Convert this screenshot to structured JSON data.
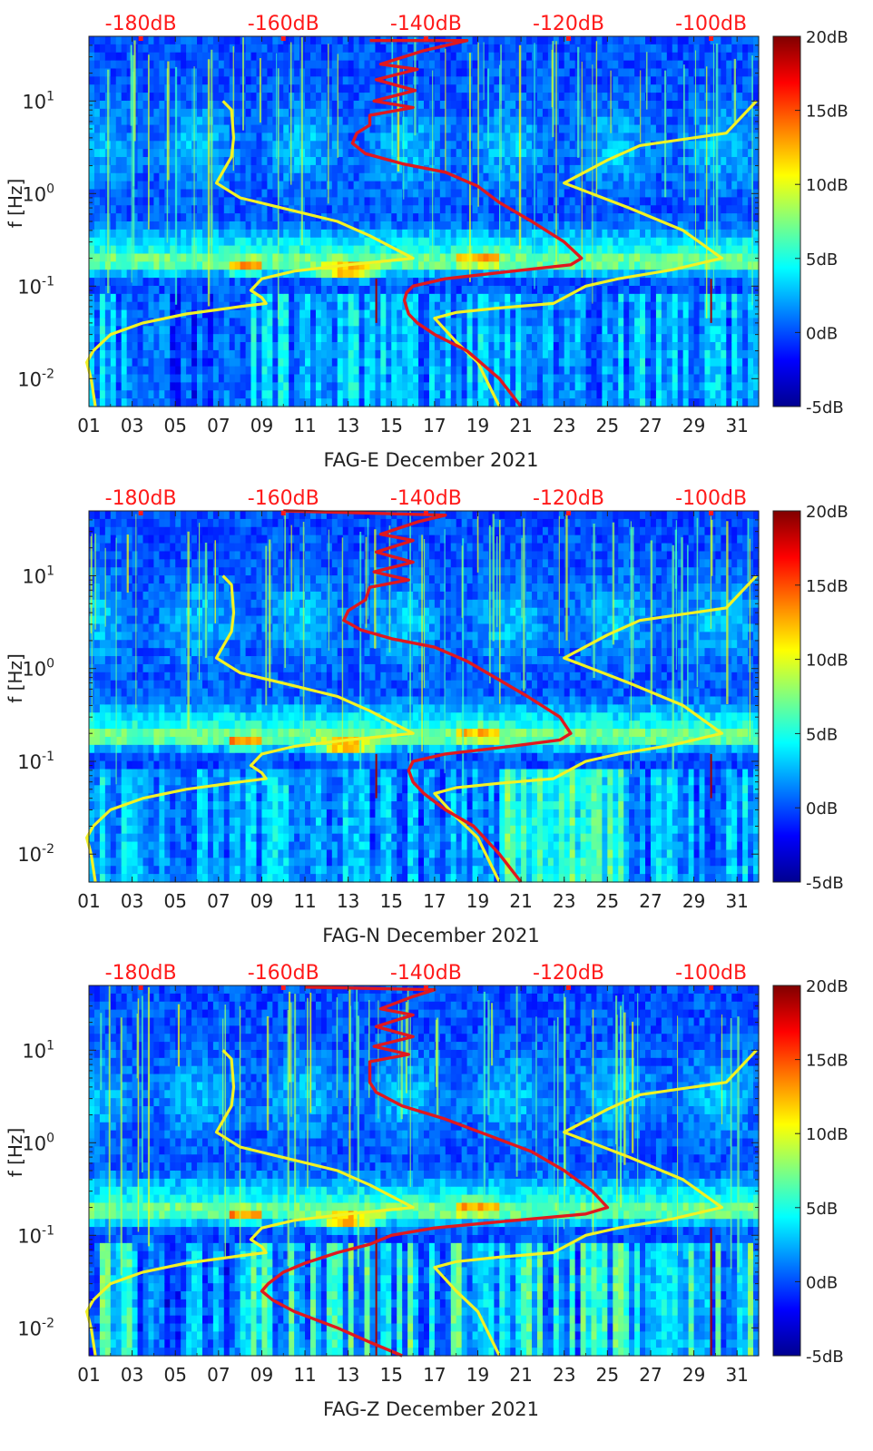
{
  "figure": {
    "colors": {
      "red_axis": "#ff1a1a",
      "red_curve": "#e0181e",
      "yellow_curve": "#f2f224",
      "text": "#222222"
    }
  },
  "chart_data": [
    {
      "type": "heatmap",
      "title": "",
      "xlabel": "FAG-E December 2021",
      "ylabel": "f [Hz]",
      "xticks": [
        "01",
        "03",
        "05",
        "07",
        "09",
        "11",
        "13",
        "15",
        "17",
        "19",
        "21",
        "23",
        "25",
        "27",
        "29",
        "31"
      ],
      "xlim": [
        1,
        32
      ],
      "ylim": [
        0.005,
        50
      ],
      "yscale": "log",
      "yticks": [
        {
          "v": 0.01,
          "b": "10",
          "e": "-2"
        },
        {
          "v": 0.1,
          "b": "10",
          "e": "-1"
        },
        {
          "v": 1,
          "b": "10",
          "e": "0"
        },
        {
          "v": 10,
          "b": "10",
          "e": "1"
        }
      ],
      "top_axis": {
        "labels": [
          "-180dB",
          "-160dB",
          "-140dB",
          "-120dB",
          "-100dB"
        ],
        "day_pos": [
          3.4,
          10.0,
          16.6,
          23.2,
          29.8
        ]
      },
      "colorbar": {
        "labels": [
          "20dB",
          "15dB",
          "10dB",
          "5dB",
          "0dB",
          "-5dB"
        ],
        "range": [
          -5,
          20
        ]
      },
      "red_curve": [
        [
          14.0,
          45
        ],
        [
          18.5,
          45
        ],
        [
          16.5,
          35
        ],
        [
          14.5,
          25
        ],
        [
          16.2,
          22
        ],
        [
          14.3,
          17
        ],
        [
          16.1,
          13
        ],
        [
          14.2,
          10
        ],
        [
          16.0,
          8.5
        ],
        [
          14.0,
          7
        ],
        [
          14.0,
          5.5
        ],
        [
          13.4,
          4.5
        ],
        [
          13.2,
          3.5
        ],
        [
          13.8,
          2.7
        ],
        [
          15.5,
          2.1
        ],
        [
          17.5,
          1.7
        ],
        [
          19.0,
          1.2
        ],
        [
          20.0,
          0.8
        ],
        [
          21.5,
          0.5
        ],
        [
          23.0,
          0.3
        ],
        [
          23.8,
          0.2
        ],
        [
          23.3,
          0.17
        ],
        [
          20.0,
          0.14
        ],
        [
          17.5,
          0.12
        ],
        [
          16.0,
          0.1
        ],
        [
          15.7,
          0.085
        ],
        [
          15.6,
          0.07
        ],
        [
          15.8,
          0.05
        ],
        [
          16.2,
          0.04
        ],
        [
          17.0,
          0.03
        ],
        [
          18.5,
          0.02
        ],
        [
          20.0,
          0.01
        ],
        [
          21.0,
          0.005
        ]
      ],
      "yellow_curves": [
        [
          [
            7.2,
            10
          ],
          [
            7.6,
            8
          ],
          [
            7.7,
            4
          ],
          [
            7.6,
            2.5
          ],
          [
            6.9,
            1.3
          ],
          [
            8.0,
            0.9
          ],
          [
            10.5,
            0.65
          ],
          [
            12.5,
            0.5
          ],
          [
            14.0,
            0.35
          ],
          [
            16.0,
            0.2
          ],
          [
            13.0,
            0.17
          ],
          [
            10.5,
            0.145
          ],
          [
            9.0,
            0.12
          ],
          [
            8.5,
            0.09
          ],
          [
            9.0,
            0.075
          ],
          [
            9.2,
            0.065
          ],
          [
            8.0,
            0.06
          ],
          [
            5.5,
            0.05
          ],
          [
            3.5,
            0.04
          ],
          [
            2.0,
            0.03
          ],
          [
            1.2,
            0.02
          ],
          [
            0.9,
            0.015
          ],
          [
            1.1,
            0.01
          ],
          [
            1.3,
            0.005
          ]
        ],
        [
          [
            31.9,
            10
          ],
          [
            30.5,
            4.5
          ],
          [
            26.5,
            3.3
          ],
          [
            25.0,
            2.3
          ],
          [
            23.0,
            1.3
          ],
          [
            26.0,
            0.7
          ],
          [
            28.5,
            0.4
          ],
          [
            30.3,
            0.2
          ],
          [
            28.0,
            0.15
          ],
          [
            25.5,
            0.12
          ],
          [
            24.0,
            0.1
          ],
          [
            22.5,
            0.065
          ],
          [
            20.0,
            0.058
          ],
          [
            18.0,
            0.052
          ],
          [
            17.0,
            0.045
          ],
          [
            18.0,
            0.025
          ],
          [
            19.0,
            0.015
          ],
          [
            20.0,
            0.005
          ]
        ]
      ]
    },
    {
      "type": "heatmap",
      "title": "",
      "xlabel": "FAG-N December 2021",
      "ylabel": "f [Hz]",
      "xticks": [
        "01",
        "03",
        "05",
        "07",
        "09",
        "11",
        "13",
        "15",
        "17",
        "19",
        "21",
        "23",
        "25",
        "27",
        "29",
        "31"
      ],
      "xlim": [
        1,
        32
      ],
      "ylim": [
        0.005,
        50
      ],
      "yscale": "log",
      "yticks": [
        {
          "v": 0.01,
          "b": "10",
          "e": "-2"
        },
        {
          "v": 0.1,
          "b": "10",
          "e": "-1"
        },
        {
          "v": 1,
          "b": "10",
          "e": "0"
        },
        {
          "v": 10,
          "b": "10",
          "e": "1"
        }
      ],
      "top_axis": {
        "labels": [
          "-180dB",
          "-160dB",
          "-140dB",
          "-120dB",
          "-100dB"
        ],
        "day_pos": [
          3.4,
          10.0,
          16.6,
          23.2,
          29.8
        ]
      },
      "colorbar": {
        "labels": [
          "20dB",
          "15dB",
          "10dB",
          "5dB",
          "0dB",
          "-5dB"
        ],
        "range": [
          -5,
          20
        ]
      },
      "red_curve": [
        [
          10.0,
          50
        ],
        [
          17.5,
          45
        ],
        [
          16.2,
          38
        ],
        [
          14.5,
          28
        ],
        [
          16.0,
          24
        ],
        [
          14.3,
          18
        ],
        [
          16.0,
          14
        ],
        [
          14.2,
          11
        ],
        [
          15.8,
          9
        ],
        [
          14.0,
          7.5
        ],
        [
          13.8,
          5.5
        ],
        [
          13.0,
          4.2
        ],
        [
          12.8,
          3.3
        ],
        [
          13.6,
          2.6
        ],
        [
          15.0,
          2.1
        ],
        [
          17.0,
          1.7
        ],
        [
          18.5,
          1.2
        ],
        [
          19.8,
          0.8
        ],
        [
          21.3,
          0.5
        ],
        [
          22.8,
          0.3
        ],
        [
          23.3,
          0.2
        ],
        [
          22.8,
          0.17
        ],
        [
          20.0,
          0.14
        ],
        [
          17.5,
          0.12
        ],
        [
          16.0,
          0.1
        ],
        [
          15.8,
          0.08
        ],
        [
          16.0,
          0.06
        ],
        [
          16.5,
          0.045
        ],
        [
          17.5,
          0.03
        ],
        [
          18.8,
          0.02
        ],
        [
          20.0,
          0.01
        ],
        [
          21.0,
          0.005
        ]
      ],
      "yellow_curves": [
        [
          [
            7.2,
            10
          ],
          [
            7.6,
            8
          ],
          [
            7.7,
            4
          ],
          [
            7.6,
            2.5
          ],
          [
            6.9,
            1.3
          ],
          [
            8.0,
            0.9
          ],
          [
            10.5,
            0.65
          ],
          [
            12.5,
            0.5
          ],
          [
            14.0,
            0.35
          ],
          [
            16.0,
            0.2
          ],
          [
            13.0,
            0.17
          ],
          [
            10.5,
            0.145
          ],
          [
            9.0,
            0.12
          ],
          [
            8.5,
            0.09
          ],
          [
            9.0,
            0.075
          ],
          [
            9.2,
            0.065
          ],
          [
            8.0,
            0.06
          ],
          [
            5.5,
            0.05
          ],
          [
            3.5,
            0.04
          ],
          [
            2.0,
            0.03
          ],
          [
            1.2,
            0.02
          ],
          [
            0.9,
            0.015
          ],
          [
            1.1,
            0.01
          ],
          [
            1.3,
            0.005
          ]
        ],
        [
          [
            31.9,
            10
          ],
          [
            30.5,
            4.5
          ],
          [
            26.5,
            3.3
          ],
          [
            25.0,
            2.3
          ],
          [
            23.0,
            1.3
          ],
          [
            26.0,
            0.7
          ],
          [
            28.5,
            0.4
          ],
          [
            30.3,
            0.2
          ],
          [
            28.0,
            0.15
          ],
          [
            25.5,
            0.12
          ],
          [
            24.0,
            0.1
          ],
          [
            22.5,
            0.065
          ],
          [
            20.0,
            0.058
          ],
          [
            18.0,
            0.052
          ],
          [
            17.0,
            0.045
          ],
          [
            18.0,
            0.025
          ],
          [
            19.0,
            0.015
          ],
          [
            20.0,
            0.005
          ]
        ]
      ]
    },
    {
      "type": "heatmap",
      "title": "",
      "xlabel": "FAG-Z December 2021",
      "ylabel": "f [Hz]",
      "xticks": [
        "01",
        "03",
        "05",
        "07",
        "09",
        "11",
        "13",
        "15",
        "17",
        "19",
        "21",
        "23",
        "25",
        "27",
        "29",
        "31"
      ],
      "xlim": [
        1,
        32
      ],
      "ylim": [
        0.005,
        50
      ],
      "yscale": "log",
      "yticks": [
        {
          "v": 0.01,
          "b": "10",
          "e": "-2"
        },
        {
          "v": 0.1,
          "b": "10",
          "e": "-1"
        },
        {
          "v": 1,
          "b": "10",
          "e": "0"
        },
        {
          "v": 10,
          "b": "10",
          "e": "1"
        }
      ],
      "top_axis": {
        "labels": [
          "-180dB",
          "-160dB",
          "-140dB",
          "-120dB",
          "-100dB"
        ],
        "day_pos": [
          3.4,
          10.0,
          16.6,
          23.2,
          29.8
        ]
      },
      "colorbar": {
        "labels": [
          "20dB",
          "15dB",
          "10dB",
          "5dB",
          "0dB",
          "-5dB"
        ],
        "range": [
          -5,
          20
        ]
      },
      "red_curve": [
        [
          11.0,
          48
        ],
        [
          17.0,
          45
        ],
        [
          16.0,
          38
        ],
        [
          14.5,
          28
        ],
        [
          16.0,
          24
        ],
        [
          14.3,
          18
        ],
        [
          16.0,
          14
        ],
        [
          14.2,
          11
        ],
        [
          15.8,
          9
        ],
        [
          14.0,
          7.5
        ],
        [
          14.0,
          5.5
        ],
        [
          14.0,
          4.5
        ],
        [
          14.3,
          3.5
        ],
        [
          15.5,
          2.5
        ],
        [
          17.5,
          1.8
        ],
        [
          19.5,
          1.2
        ],
        [
          21.5,
          0.8
        ],
        [
          23.0,
          0.5
        ],
        [
          24.3,
          0.3
        ],
        [
          25.0,
          0.2
        ],
        [
          24.0,
          0.17
        ],
        [
          20.0,
          0.14
        ],
        [
          17.0,
          0.12
        ],
        [
          15.0,
          0.1
        ],
        [
          14.0,
          0.08
        ],
        [
          12.5,
          0.065
        ],
        [
          11.0,
          0.05
        ],
        [
          10.0,
          0.04
        ],
        [
          9.3,
          0.03
        ],
        [
          9.0,
          0.025
        ],
        [
          9.5,
          0.02
        ],
        [
          10.5,
          0.015
        ],
        [
          12.5,
          0.01
        ],
        [
          14.0,
          0.007
        ],
        [
          15.5,
          0.005
        ]
      ],
      "yellow_curves": [
        [
          [
            7.2,
            10
          ],
          [
            7.6,
            8
          ],
          [
            7.7,
            4
          ],
          [
            7.6,
            2.5
          ],
          [
            6.9,
            1.3
          ],
          [
            8.0,
            0.9
          ],
          [
            10.5,
            0.65
          ],
          [
            12.5,
            0.5
          ],
          [
            14.0,
            0.35
          ],
          [
            16.0,
            0.2
          ],
          [
            13.0,
            0.17
          ],
          [
            10.5,
            0.145
          ],
          [
            9.0,
            0.12
          ],
          [
            8.5,
            0.09
          ],
          [
            9.0,
            0.075
          ],
          [
            9.2,
            0.065
          ],
          [
            8.0,
            0.06
          ],
          [
            5.5,
            0.05
          ],
          [
            3.5,
            0.04
          ],
          [
            2.0,
            0.03
          ],
          [
            1.2,
            0.02
          ],
          [
            0.9,
            0.015
          ],
          [
            1.1,
            0.01
          ],
          [
            1.3,
            0.005
          ]
        ],
        [
          [
            31.9,
            10
          ],
          [
            30.5,
            4.5
          ],
          [
            26.5,
            3.3
          ],
          [
            25.0,
            2.3
          ],
          [
            23.0,
            1.3
          ],
          [
            26.0,
            0.7
          ],
          [
            28.5,
            0.4
          ],
          [
            30.3,
            0.2
          ],
          [
            28.0,
            0.15
          ],
          [
            25.5,
            0.12
          ],
          [
            24.0,
            0.1
          ],
          [
            22.5,
            0.065
          ],
          [
            20.0,
            0.058
          ],
          [
            18.0,
            0.052
          ],
          [
            17.0,
            0.045
          ],
          [
            18.0,
            0.025
          ],
          [
            19.0,
            0.015
          ],
          [
            20.0,
            0.005
          ]
        ]
      ]
    }
  ]
}
